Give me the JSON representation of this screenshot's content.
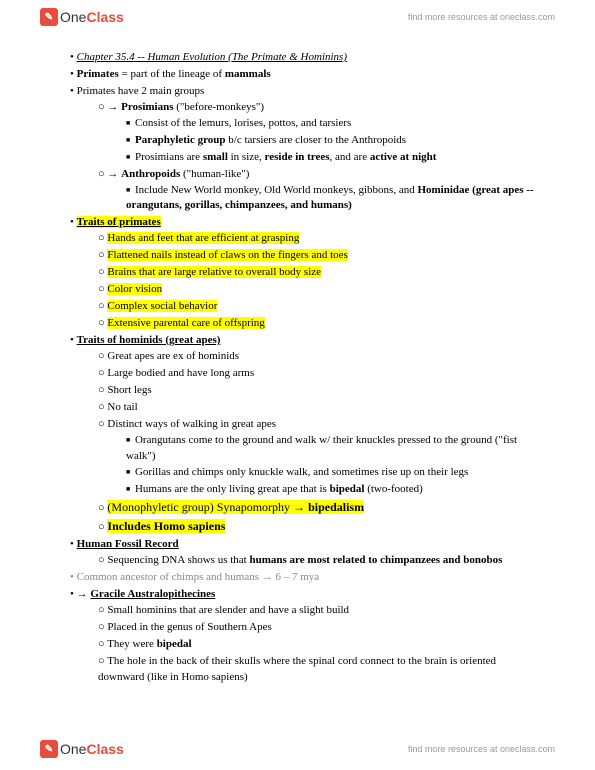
{
  "header": {
    "logo_one": "One",
    "logo_class": "Class",
    "tagline": "find more resources at oneclass.com"
  },
  "doc": {
    "chapter_title": "Chapter 35.4 -- Human Evolution (The Primate & Hominins)",
    "primates_def_a": "Primates",
    "primates_def_b": " = part of the lineage of ",
    "primates_def_c": "mammals",
    "two_groups": "Primates have 2 main groups",
    "prosimians_label": "Prosimians",
    "prosimians_paren": " (\"before-monkeys\")",
    "prosimians_consist": "Consist of the lemurs, lorises, pottos, and tarsiers",
    "paraphyletic_a": "Paraphyletic group",
    "paraphyletic_b": " b/c tarsiers are closer to the Anthropoids",
    "prosimians_small_a": "Prosimians are ",
    "prosimians_small_b": "small",
    "prosimians_small_c": " in size, ",
    "prosimians_small_d": "reside in trees",
    "prosimians_small_e": ", and are ",
    "prosimians_small_f": "active at night",
    "anthropoids_label": "Anthropoids",
    "anthropoids_paren": " (\"human-like\")",
    "anthropoids_include_a": "Include New World monkey, Old World monkeys, gibbons, and ",
    "anthropoids_include_b": "Hominidae (great apes -- orangutans, gorillas, chimpanzees, and humans)",
    "traits_primates": "Traits of primates",
    "tp1": "Hands and feet that are efficient at grasping",
    "tp2": "Flattened nails instead of claws on the fingers and toes",
    "tp3": "Brains that are large relative to overall body size",
    "tp4": "Color vision",
    "tp5": "Complex social behavior",
    "tp6": "Extensive parental care of offspring",
    "traits_hominids": "Traits of hominids (great apes)",
    "th1": "Great apes are ex of hominids",
    "th2": "Large bodied and have long arms",
    "th3": "Short legs",
    "th4": "No tail",
    "th5": "Distinct ways of walking in great apes",
    "th5a": "Orangutans come to the ground and walk w/ their knuckles pressed to the ground (\"fist walk\")",
    "th5b": "Gorillas and chimps only knuckle walk, and sometimes rise up on their legs",
    "th5c_a": "Humans are the only living great ape that is ",
    "th5c_b": "bipedal",
    "th5c_c": " (two-footed)",
    "mono_a": "(Monophyletic group) Synapomorphy → ",
    "mono_b": "bipedalism",
    "includes_homo": "Includes Homo sapiens",
    "fossil_record": "Human Fossil Record",
    "seq_a": "Sequencing DNA shows us that ",
    "seq_b": "humans are most related to chimpanzees and bonobos",
    "common_anc": "Common ancestor of chimps and humans → 6 – 7 mya",
    "gracile": "Gracile Australopithecines",
    "ga1": "Small hominins that are slender and have a slight build",
    "ga2": "Placed in the genus of Southern Apes",
    "ga3_a": "They were ",
    "ga3_b": "bipedal",
    "ga4": "The hole in the back of their skulls where the spinal cord connect to the brain is oriented downward (like in Homo sapiens)"
  },
  "colors": {
    "highlight": "#ffff00",
    "logo_red": "#e74c3c",
    "gray": "#888888"
  }
}
